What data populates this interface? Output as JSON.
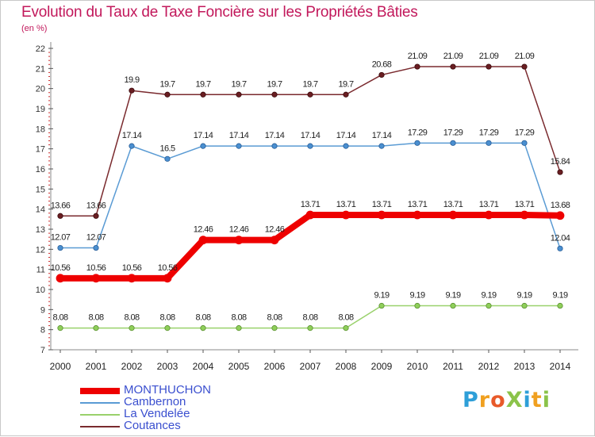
{
  "header": {
    "title": "Evolution du Taux de Taxe Foncière sur les Propriétés Bâties",
    "unit": "(en %)"
  },
  "logo": {
    "text": "Proxiti",
    "letters": [
      {
        "ch": "P",
        "color": "#2e9fd8"
      },
      {
        "ch": "r",
        "color": "#f0a020"
      },
      {
        "ch": "o",
        "color": "#e85a2a"
      },
      {
        "ch": "X",
        "color": "#8bc34a"
      },
      {
        "ch": "i",
        "color": "#2e9fd8"
      },
      {
        "ch": "t",
        "color": "#f0a020"
      },
      {
        "ch": "i",
        "color": "#8bc34a"
      }
    ]
  },
  "chart_data": {
    "type": "line",
    "title": "Evolution du Taux de Taxe Foncière sur les Propriétés Bâties",
    "ylabel": "(en %)",
    "xlabel": "",
    "ylim": [
      7,
      22
    ],
    "y_ticks": [
      "7",
      "8",
      "9",
      "10",
      "11",
      "12",
      "13",
      "14",
      "15",
      "16",
      "17",
      "18",
      "19",
      "20",
      "21",
      "22"
    ],
    "categories": [
      "2000",
      "2001",
      "2002",
      "2003",
      "2004",
      "2005",
      "2006",
      "2007",
      "2008",
      "2009",
      "2010",
      "2011",
      "2012",
      "2013",
      "2014"
    ],
    "grid": false,
    "legend_position": "bottom-left",
    "series": [
      {
        "name": "Coutances",
        "color": "#7a2a2e",
        "values": [
          13.66,
          13.66,
          19.9,
          19.7,
          19.7,
          19.7,
          19.7,
          19.7,
          19.7,
          20.68,
          21.09,
          21.09,
          21.09,
          21.09,
          15.84
        ],
        "labels": [
          "13.66",
          "13.66",
          "19.9",
          "19.7",
          "19.7",
          "19.7",
          "19.7",
          "19.7",
          "19.7",
          "20.68",
          "21.09",
          "21.09",
          "21.09",
          "21.09",
          "15.84"
        ]
      },
      {
        "name": "Cambernon",
        "color": "#5a9bd4",
        "values": [
          12.07,
          12.07,
          17.14,
          16.5,
          17.14,
          17.14,
          17.14,
          17.14,
          17.14,
          17.14,
          17.29,
          17.29,
          17.29,
          17.29,
          12.04
        ],
        "labels": [
          "12.07",
          "12.07",
          "17.14",
          "16.5",
          "17.14",
          "17.14",
          "17.14",
          "17.14",
          "17.14",
          "17.14",
          "17.29",
          "17.29",
          "17.29",
          "17.29",
          "12.04"
        ]
      },
      {
        "name": "La Vendelée",
        "color": "#99d16b",
        "values": [
          8.08,
          8.08,
          8.08,
          8.08,
          8.08,
          8.08,
          8.08,
          8.08,
          8.08,
          9.19,
          9.19,
          9.19,
          9.19,
          9.19,
          9.19
        ],
        "labels": [
          "8.08",
          "8.08",
          "8.08",
          "8.08",
          "8.08",
          "8.08",
          "8.08",
          "8.08",
          "8.08",
          "9.19",
          "9.19",
          "9.19",
          "9.19",
          "9.19",
          "9.19"
        ]
      },
      {
        "name": "MONTHUCHON",
        "color": "#ee0000",
        "values": [
          10.56,
          10.56,
          10.56,
          10.56,
          12.46,
          12.46,
          12.46,
          13.71,
          13.71,
          13.71,
          13.71,
          13.71,
          13.71,
          13.71,
          13.68
        ],
        "labels": [
          "10.56",
          "10.56",
          "10.56",
          "10.56",
          "12.46",
          "12.46",
          "12.46",
          "13.71",
          "13.71",
          "13.71",
          "13.71",
          "13.71",
          "13.71",
          "13.71",
          "13.68"
        ]
      }
    ],
    "legend_order": [
      "MONTHUCHON",
      "Cambernon",
      "La Vendelée",
      "Coutances"
    ]
  }
}
